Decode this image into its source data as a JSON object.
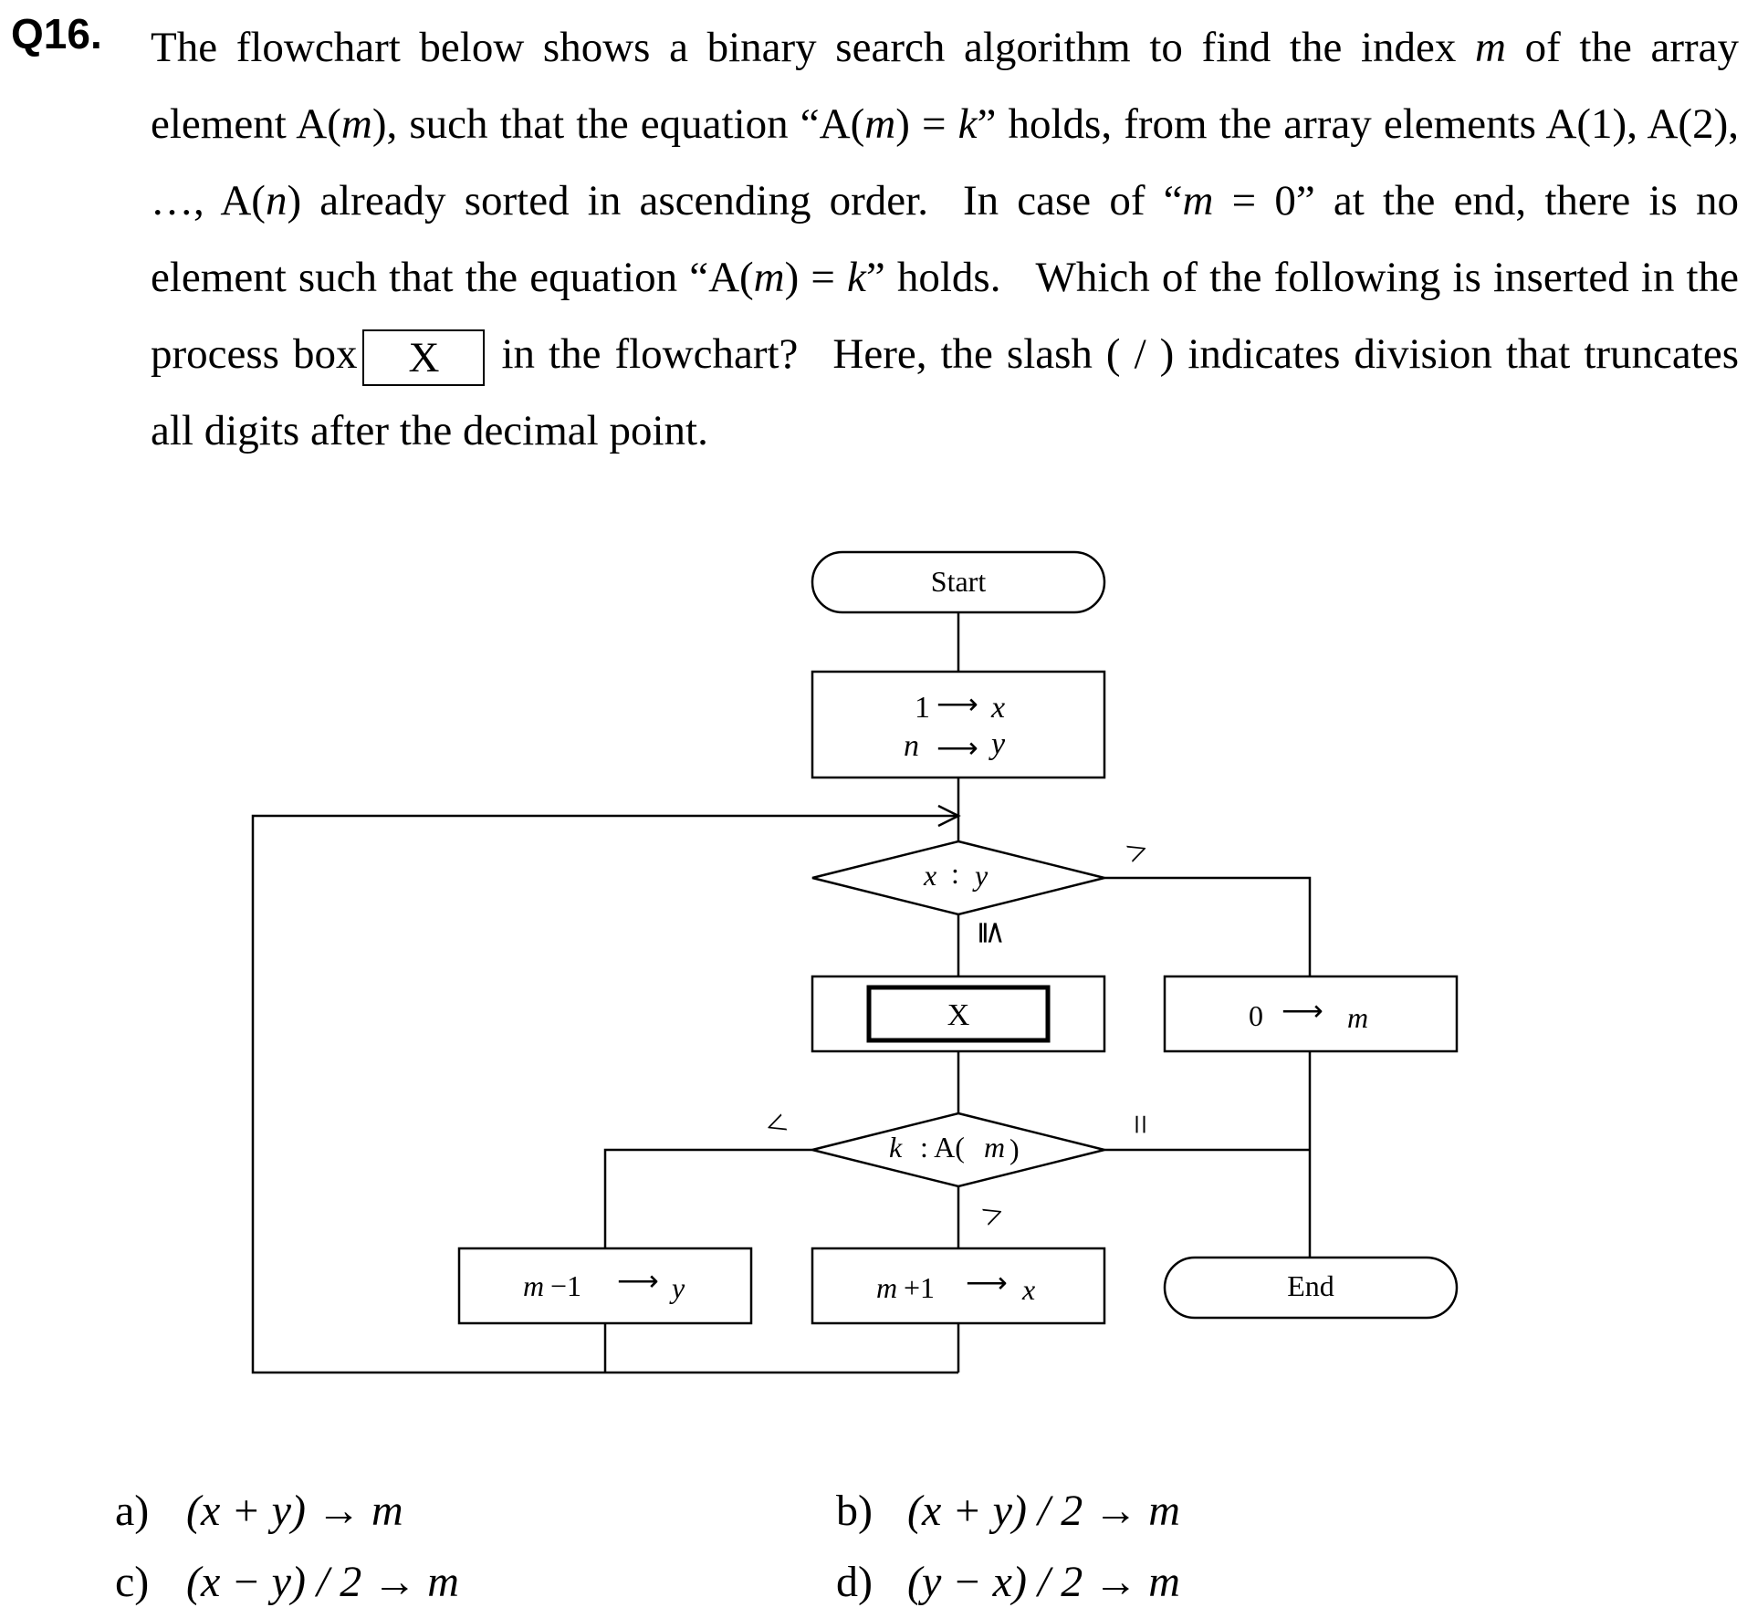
{
  "question": {
    "number": "Q16.",
    "seg1": "The flowchart below shows a binary search algorithm to find the index ",
    "m1": "m",
    "seg2": " of the array element A(",
    "m2": "m",
    "seg3": "), such that the equation “A(",
    "m3": "m",
    "seg4": ") = ",
    "k1": "k",
    "seg5": "” holds, from the array elements A(1), A(2), …, A(",
    "n1": "n",
    "seg6": ") already sorted in ascending order.",
    "seg7": "In case of “",
    "m4": "m",
    "seg8": " = 0” at the end, there is no element such that the equation “A(",
    "m5": "m",
    "seg9": ") = ",
    "k2": "k",
    "seg10": "” holds.",
    "seg11": "Which of the following is inserted in the process box",
    "box_label": "X",
    "seg12": "in the flowchart?",
    "seg13": "Here, the slash ( / ) indicates division that truncates all digits after the decimal point."
  },
  "flowchart": {
    "start": "Start",
    "init_1": "1",
    "init_x": "x",
    "init_n": "n",
    "init_y": "y",
    "cond1_x": "x",
    "cond1_colon": ":",
    "cond1_y": "y",
    "cond1_le": "≦",
    "cond1_gt": ">",
    "process_x": "X",
    "zero_0": "0",
    "zero_m": "m",
    "cond2_k": "k",
    "cond2_rest": ": A(",
    "cond2_m": "m",
    "cond2_close": ")",
    "cond2_lt": "<",
    "cond2_eq": "=",
    "cond2_gt": ">",
    "left_m": "m",
    "left_minus": "−1",
    "left_y": "y",
    "mid_m": "m",
    "mid_plus": "+1",
    "mid_x": "x",
    "end": "End",
    "arrow": "⟶"
  },
  "choices": [
    {
      "letter": "a)",
      "expr": "(x + y) → m"
    },
    {
      "letter": "b)",
      "expr": "(x + y) / 2 → m"
    },
    {
      "letter": "c)",
      "expr": "(x − y) / 2 → m"
    },
    {
      "letter": "d)",
      "expr": "(y − x) / 2 → m"
    }
  ]
}
